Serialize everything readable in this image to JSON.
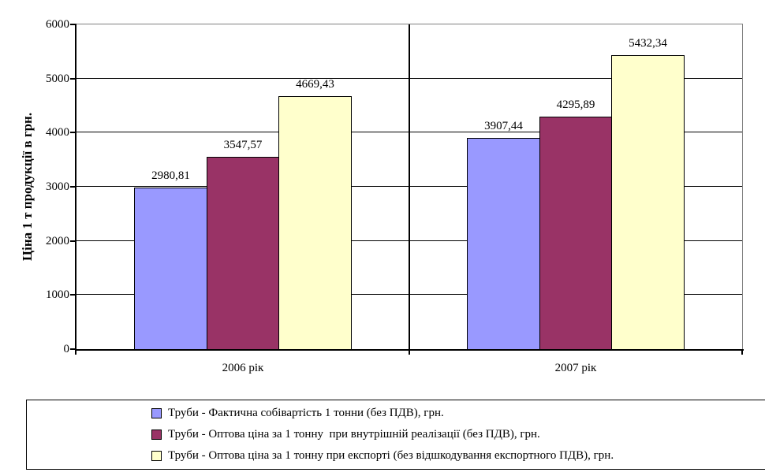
{
  "chart_data": {
    "type": "bar",
    "ylabel": "Ціна 1 т продукції в грн.",
    "categories": [
      "2006 рік",
      "2007 рік"
    ],
    "series": [
      {
        "name": "Труби - Фактична собівартість 1 тонни (без ПДВ), грн.",
        "color": "#9999FF",
        "values": [
          2980.81,
          3907.44
        ],
        "data_labels": [
          "2980,81",
          "3907,44"
        ]
      },
      {
        "name": "Труби - Оптова ціна за 1 тонну  при внутрішній реалізації (без ПДВ), грн.",
        "color": "#993366",
        "values": [
          3547.57,
          4295.89
        ],
        "data_labels": [
          "3547,57",
          "4295,89"
        ]
      },
      {
        "name": "Труби - Оптова ціна за 1 тонну при експорті (без відшкодування експортного ПДВ), грн.",
        "color": "#FFFFCC",
        "values": [
          4669.43,
          5432.34
        ],
        "data_labels": [
          "4669,43",
          "5432,34"
        ]
      }
    ],
    "ylim": [
      0,
      6000
    ],
    "ytick_step": 1000,
    "ytick_labels": [
      "0",
      "1000",
      "2000",
      "3000",
      "4000",
      "5000",
      "6000"
    ],
    "grid": true,
    "legend_position": "bottom",
    "colors": {
      "background": "#FFFFFF",
      "plot_border": "#808080",
      "gridline": "#000000",
      "axis": "#000000",
      "text": "#000000"
    }
  }
}
